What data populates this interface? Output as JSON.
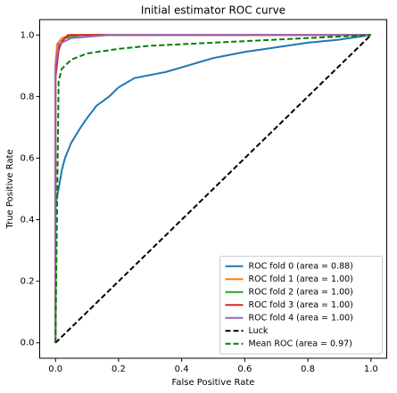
{
  "chart_data": {
    "type": "line",
    "title": "Initial estimator ROC curve",
    "x_label": "False Positive Rate",
    "y_label": "True Positive Rate",
    "xlim": [
      -0.05,
      1.05
    ],
    "ylim": [
      -0.05,
      1.05
    ],
    "xticks": [
      {
        "value": 0,
        "label": "0.0"
      },
      0.2,
      0.4,
      0.6,
      0.8,
      {
        "value": 1,
        "label": "1.0"
      }
    ],
    "yticks": [
      {
        "value": 0,
        "label": "0.0"
      },
      0.2,
      0.4,
      0.6,
      0.8,
      {
        "value": 1,
        "label": "1.0"
      }
    ],
    "legend": "lower right",
    "series": [
      {
        "name": "ROC fold 0 (area = 0.88)",
        "color": "#1f77b4",
        "dashed": false,
        "x": [
          0,
          0,
          0.01,
          0.02,
          0.03,
          0.05,
          0.08,
          0.1,
          0.13,
          0.17,
          0.2,
          0.25,
          0.3,
          0.35,
          0.4,
          0.45,
          0.5,
          0.55,
          0.6,
          0.7,
          0.8,
          0.9,
          1
        ],
        "values": [
          0,
          0.45,
          0.5,
          0.56,
          0.6,
          0.65,
          0.7,
          0.73,
          0.77,
          0.8,
          0.83,
          0.86,
          0.87,
          0.88,
          0.895,
          0.91,
          0.925,
          0.935,
          0.945,
          0.96,
          0.975,
          0.985,
          1
        ]
      },
      {
        "name": "ROC fold 1 (area = 1.00)",
        "color": "#ff7f0e",
        "dashed": false,
        "x": [
          0,
          0,
          0.005,
          0.02,
          0.05,
          1
        ],
        "values": [
          0,
          0.9,
          0.97,
          0.99,
          1,
          1
        ]
      },
      {
        "name": "ROC fold 2 (area = 1.00)",
        "color": "#2ca02c",
        "dashed": false,
        "x": [
          0,
          0,
          0.01,
          0.03,
          0.08,
          1
        ],
        "values": [
          0,
          0.88,
          0.96,
          0.99,
          1,
          1
        ]
      },
      {
        "name": "ROC fold 3 (area = 1.00)",
        "color": "#d62728",
        "dashed": false,
        "x": [
          0,
          0,
          0.01,
          0.02,
          0.04,
          1
        ],
        "values": [
          0,
          0.86,
          0.95,
          0.98,
          1,
          1
        ]
      },
      {
        "name": "ROC fold 4 (area = 1.00)",
        "color": "#9467bd",
        "dashed": false,
        "x": [
          0,
          0,
          0.01,
          0.05,
          0.17,
          1
        ],
        "values": [
          0,
          0.9,
          0.97,
          0.99,
          1,
          1
        ]
      },
      {
        "name": "Luck",
        "color": "#000000",
        "dashed": true,
        "x": [
          0,
          1
        ],
        "values": [
          0,
          1
        ]
      },
      {
        "name": "Mean ROC (area = 0.97)",
        "color": "#008000",
        "dashed": true,
        "x": [
          0,
          0.01,
          0.02,
          0.05,
          0.1,
          0.2,
          0.3,
          0.5,
          0.7,
          0.9,
          1
        ],
        "values": [
          0,
          0.85,
          0.89,
          0.92,
          0.94,
          0.955,
          0.965,
          0.975,
          0.985,
          0.995,
          1
        ]
      }
    ]
  }
}
